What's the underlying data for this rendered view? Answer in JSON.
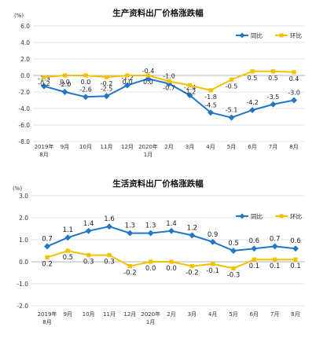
{
  "chart_data": [
    {
      "type": "line",
      "title": "生产资料出厂价格涨跌幅",
      "unit": "(%)",
      "categories": [
        {
          "l1": "2019年",
          "l2": "8月"
        },
        {
          "l1": "9月",
          "l2": ""
        },
        {
          "l1": "10月",
          "l2": ""
        },
        {
          "l1": "11月",
          "l2": ""
        },
        {
          "l1": "12月",
          "l2": ""
        },
        {
          "l1": "2020年",
          "l2": "1月"
        },
        {
          "l1": "2月",
          "l2": ""
        },
        {
          "l1": "3月",
          "l2": ""
        },
        {
          "l1": "4月",
          "l2": ""
        },
        {
          "l1": "5月",
          "l2": ""
        },
        {
          "l1": "6月",
          "l2": ""
        },
        {
          "l1": "7月",
          "l2": ""
        },
        {
          "l1": "8月",
          "l2": ""
        }
      ],
      "ylim": [
        -8.0,
        6.0
      ],
      "yticks": [
        "6.0",
        "4.0",
        "2.0",
        "0.0",
        "-2.0",
        "-4.0",
        "-6.0",
        "-8.0"
      ],
      "series": [
        {
          "name": "同比",
          "color": "#1f77c8",
          "values": [
            -1.3,
            -2.0,
            -2.6,
            -2.5,
            -1.2,
            -0.4,
            -1.0,
            -2.4,
            -4.5,
            -5.1,
            -4.2,
            -3.5,
            -3.0
          ],
          "labels": [
            "-1.3",
            "-2.0",
            "-2.6",
            "-2.5",
            "-1.2",
            "-0.4",
            "-1.0",
            "-2.4",
            "-4.5",
            "-5.1",
            "-4.2",
            "-3.5",
            "-3.0"
          ]
        },
        {
          "name": "环比",
          "color": "#f2c200",
          "values": [
            -0.2,
            0.0,
            0.0,
            -0.2,
            0.0,
            0.0,
            -0.7,
            -1.2,
            -1.8,
            -0.5,
            0.5,
            0.5,
            0.4
          ],
          "labels": [
            "-0.2",
            "0.0",
            "0.0",
            "-0.2",
            "0.0",
            "0.0",
            "-0.7",
            "-1.2",
            "-1.8",
            "-0.5",
            "0.5",
            "0.5",
            "0.4"
          ]
        }
      ],
      "legend": "top-right",
      "grid": true
    },
    {
      "type": "line",
      "title": "生活资料出厂价格涨跌幅",
      "unit": "(%)",
      "categories": [
        {
          "l1": "2019年",
          "l2": "8月"
        },
        {
          "l1": "9月",
          "l2": ""
        },
        {
          "l1": "10月",
          "l2": ""
        },
        {
          "l1": "11月",
          "l2": ""
        },
        {
          "l1": "12月",
          "l2": ""
        },
        {
          "l1": "2020年",
          "l2": "1月"
        },
        {
          "l1": "2月",
          "l2": ""
        },
        {
          "l1": "3月",
          "l2": ""
        },
        {
          "l1": "4月",
          "l2": ""
        },
        {
          "l1": "5月",
          "l2": ""
        },
        {
          "l1": "6月",
          "l2": ""
        },
        {
          "l1": "7月",
          "l2": ""
        },
        {
          "l1": "8月",
          "l2": ""
        }
      ],
      "ylim": [
        -2.0,
        3.0
      ],
      "yticks": [
        "3.0",
        "2.0",
        "1.0",
        "0.0",
        "-1.0",
        "-2.0"
      ],
      "series": [
        {
          "name": "同比",
          "color": "#1f77c8",
          "values": [
            0.7,
            1.1,
            1.4,
            1.6,
            1.3,
            1.3,
            1.4,
            1.2,
            0.9,
            0.5,
            0.6,
            0.7,
            0.6
          ],
          "labels": [
            "0.7",
            "1.1",
            "1.4",
            "1.6",
            "1.3",
            "1.3",
            "1.4",
            "1.2",
            "0.9",
            "0.5",
            "0.6",
            "0.7",
            "0.6"
          ]
        },
        {
          "name": "环比",
          "color": "#f2c200",
          "values": [
            0.2,
            0.5,
            0.3,
            0.3,
            -0.2,
            0.0,
            0.0,
            -0.2,
            -0.1,
            -0.3,
            0.1,
            0.1,
            0.1
          ],
          "labels": [
            "0.2",
            "0.5",
            "0.3",
            "0.3",
            "-0.2",
            "0.0",
            "0.0",
            "-0.2",
            "-0.1",
            "-0.3",
            "0.1",
            "0.1",
            "0.1"
          ]
        }
      ],
      "legend": "top-right",
      "grid": true
    }
  ]
}
